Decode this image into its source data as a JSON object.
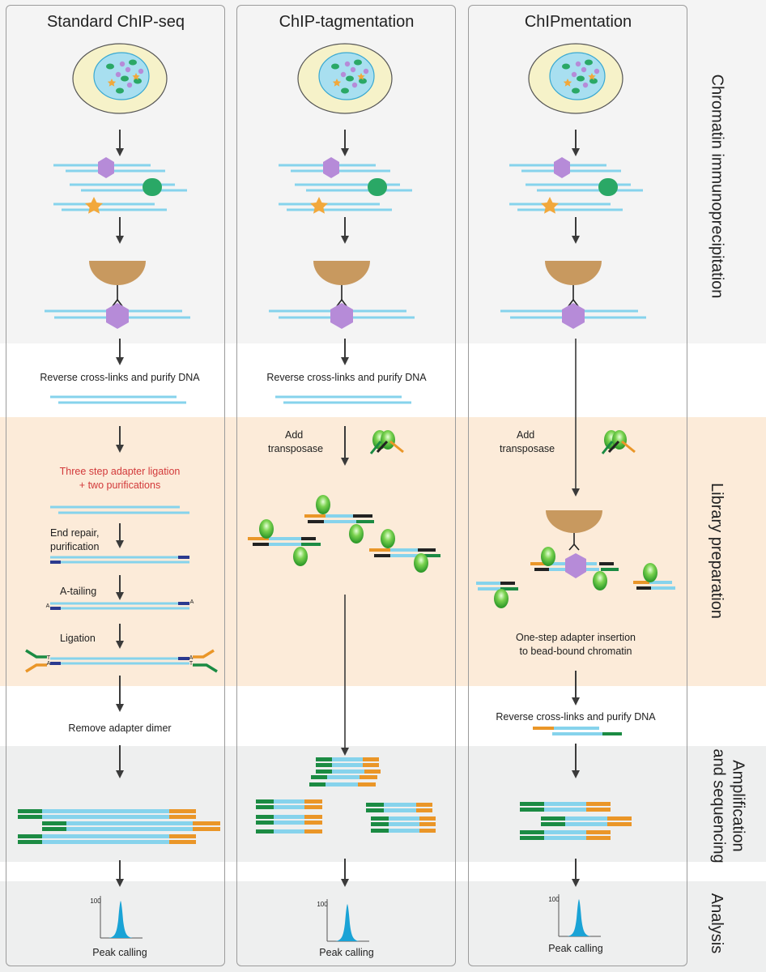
{
  "columns": [
    {
      "title": "Standard ChIP-seq"
    },
    {
      "title": "ChIP-tagmentation"
    },
    {
      "title": "ChIPmentation"
    }
  ],
  "stages": {
    "chromatin_ip": "Chromatin immunoprecipitation",
    "library_prep": "Library preparation",
    "amp_seq_line1": "Amplification",
    "amp_seq_line2": "and sequencing",
    "analysis": "Analysis"
  },
  "steps": {
    "reverse_crosslinks": "Reverse cross-links and purify DNA",
    "three_step_line1": "Three step adapter ligation",
    "three_step_line2": "+ two purifications",
    "end_repair_line1": "End repair,",
    "end_repair_line2": "purification",
    "a_tailing": "A-tailing",
    "ligation": "Ligation",
    "remove_dimer": "Remove adapter dimer",
    "add_line1": "Add",
    "add_line2": "transposase",
    "one_step_line1": "One-step adapter insertion",
    "one_step_line2": "to bead-bound chromatin",
    "peak_calling": "Peak calling",
    "peak_axis": "100",
    "base_A": "A",
    "base_T": "T"
  },
  "colors": {
    "dna": "#86d3ec",
    "adapter_green": "#1b8b43",
    "adapter_orange": "#ea9628",
    "bead": "#c8995f",
    "histone_purple": "#b68bd8",
    "protein_green": "#2aa866",
    "star_orange": "#f2a83b",
    "peak_blue": "#1aa3d6",
    "text_red": "#d2393a"
  }
}
